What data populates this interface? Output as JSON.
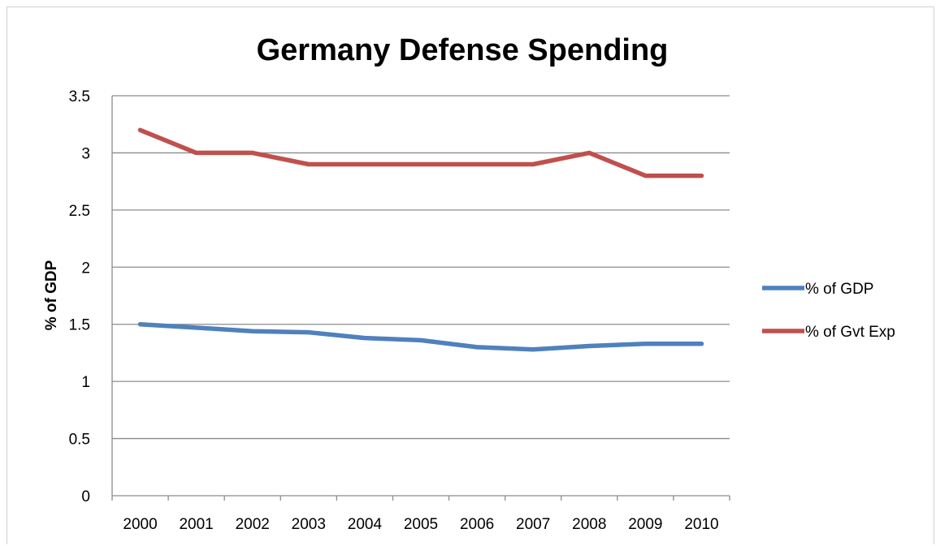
{
  "chart_data": {
    "type": "line",
    "title": "Germany Defense Spending",
    "xlabel": "",
    "ylabel": "% of GDP",
    "categories": [
      "2000",
      "2001",
      "2002",
      "2003",
      "2004",
      "2005",
      "2006",
      "2007",
      "2008",
      "2009",
      "2010"
    ],
    "ylim": [
      0,
      3.5
    ],
    "yticks": [
      "0",
      "0.5",
      "1",
      "1.5",
      "2",
      "2.5",
      "3",
      "3.5"
    ],
    "grid": true,
    "legend": "right",
    "series": [
      {
        "name": "% of GDP",
        "color": "#4F81BD",
        "values": [
          1.5,
          1.47,
          1.44,
          1.43,
          1.38,
          1.36,
          1.3,
          1.28,
          1.31,
          1.33,
          1.33
        ]
      },
      {
        "name": "% of Gvt Exp",
        "color": "#C0504D",
        "values": [
          3.2,
          3.0,
          3.0,
          2.9,
          2.9,
          2.9,
          2.9,
          2.9,
          3.0,
          2.8,
          2.8
        ]
      }
    ]
  }
}
